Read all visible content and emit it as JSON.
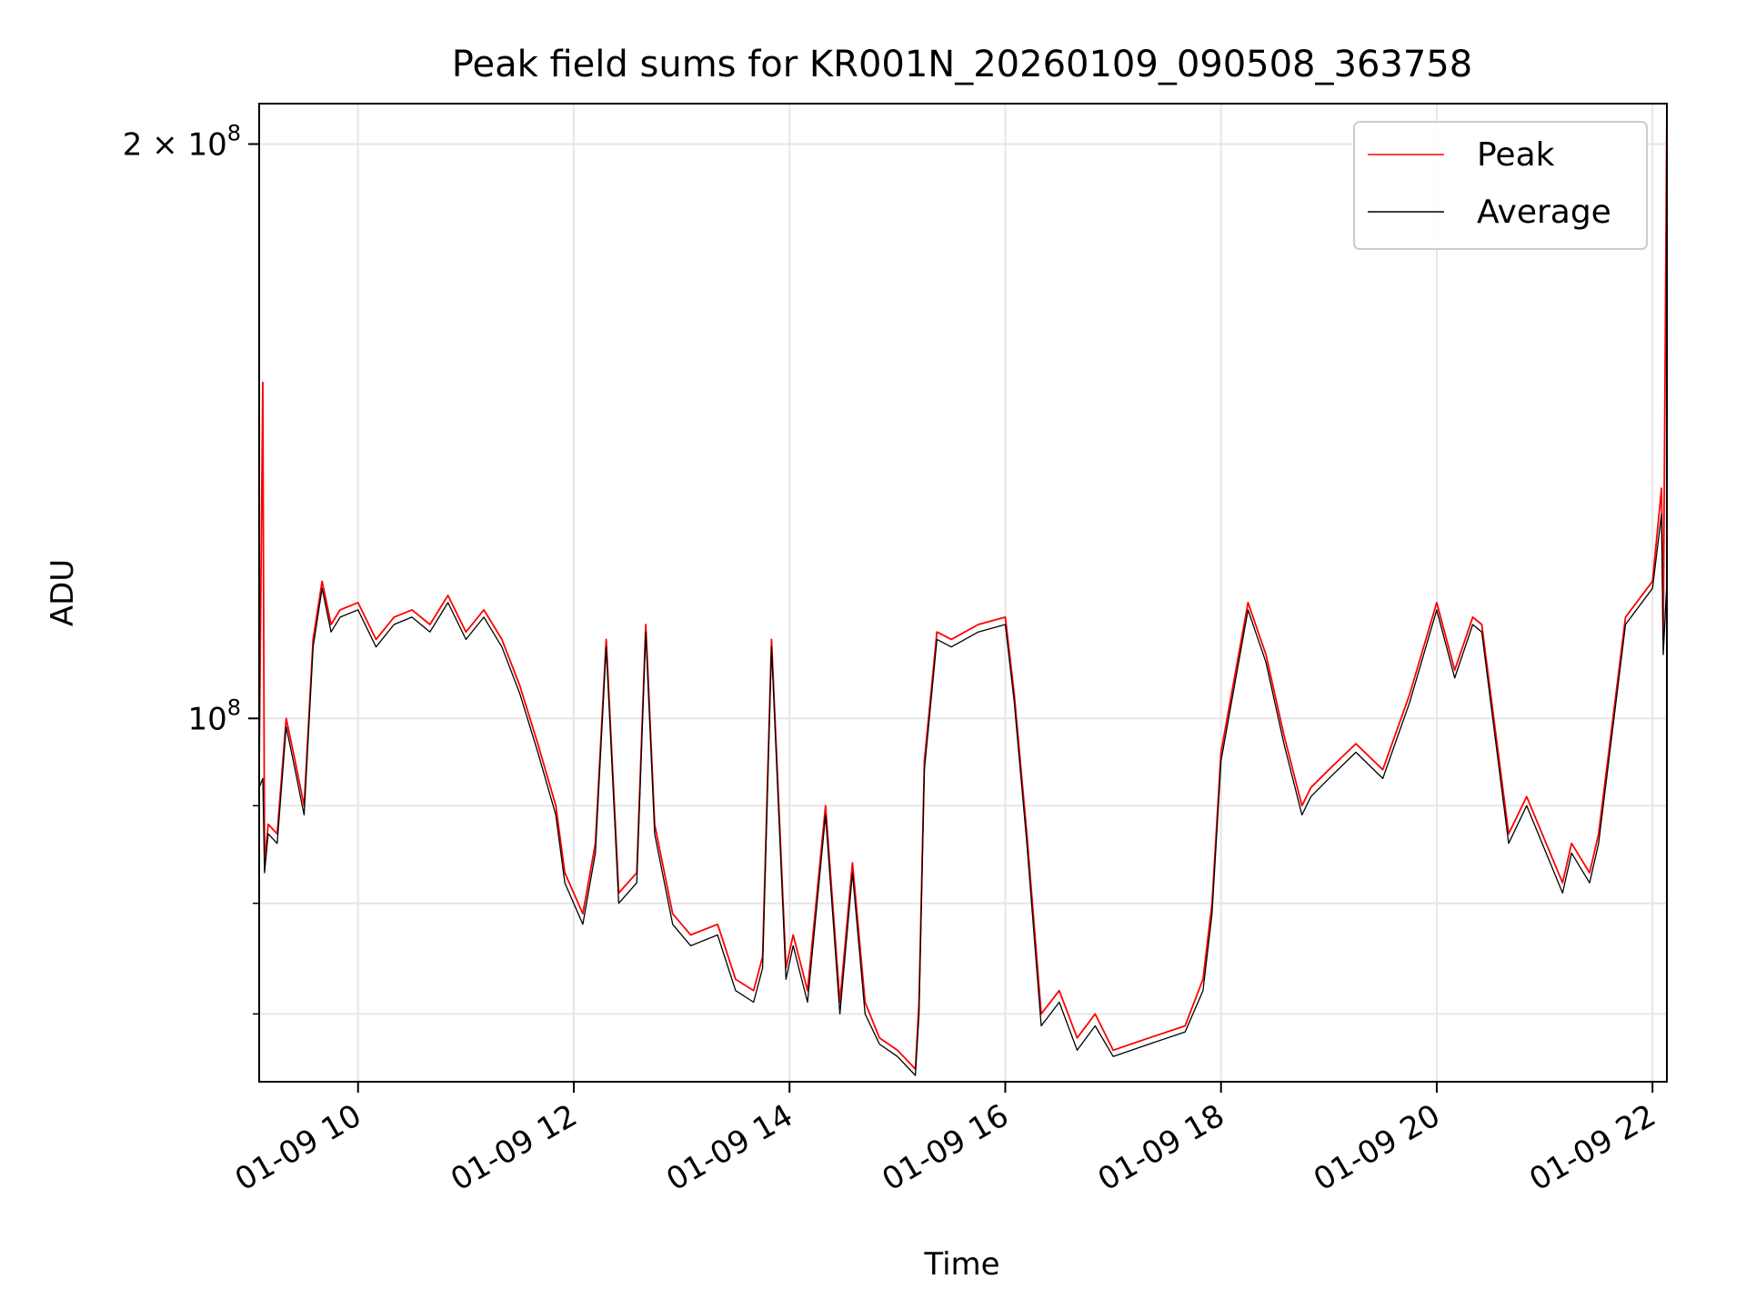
{
  "chart_data": {
    "type": "line",
    "title": "Peak field sums for KR001N_20260109_090508_363758",
    "xlabel": "Time",
    "ylabel": "ADU",
    "y_scale": "log",
    "ylim": [
      64500000,
      210000000
    ],
    "xlim": [
      "2026-01-09 09:05",
      "2026-01-09 22:08"
    ],
    "grid": true,
    "legend_position": "upper right",
    "x_ticks": [
      {
        "value": "2026-01-09 10:00",
        "label": "01-09 10"
      },
      {
        "value": "2026-01-09 12:00",
        "label": "01-09 12"
      },
      {
        "value": "2026-01-09 14:00",
        "label": "01-09 14"
      },
      {
        "value": "2026-01-09 16:00",
        "label": "01-09 16"
      },
      {
        "value": "2026-01-09 18:00",
        "label": "01-09 18"
      },
      {
        "value": "2026-01-09 20:00",
        "label": "01-09 20"
      },
      {
        "value": "2026-01-09 22:00",
        "label": "01-09 22"
      }
    ],
    "y_ticks_major": [
      {
        "value": 100000000,
        "label_base": "10",
        "label_exp": "8",
        "label_prefix": ""
      },
      {
        "value": 200000000,
        "label_base": "10",
        "label_exp": "8",
        "label_prefix": "2 × "
      }
    ],
    "y_ticks_minor": [
      70000000,
      80000000,
      90000000
    ],
    "series": [
      {
        "name": "Peak",
        "color": "#ff0000",
        "x": [
          "2026-01-09 09:05",
          "2026-01-09 09:07",
          "2026-01-09 09:08",
          "2026-01-09 09:10",
          "2026-01-09 09:15",
          "2026-01-09 09:20",
          "2026-01-09 09:25",
          "2026-01-09 09:30",
          "2026-01-09 09:35",
          "2026-01-09 09:40",
          "2026-01-09 09:45",
          "2026-01-09 09:50",
          "2026-01-09 10:00",
          "2026-01-09 10:10",
          "2026-01-09 10:20",
          "2026-01-09 10:30",
          "2026-01-09 10:40",
          "2026-01-09 10:50",
          "2026-01-09 11:00",
          "2026-01-09 11:10",
          "2026-01-09 11:20",
          "2026-01-09 11:30",
          "2026-01-09 11:40",
          "2026-01-09 11:50",
          "2026-01-09 11:55",
          "2026-01-09 12:05",
          "2026-01-09 12:12",
          "2026-01-09 12:18",
          "2026-01-09 12:25",
          "2026-01-09 12:35",
          "2026-01-09 12:40",
          "2026-01-09 12:45",
          "2026-01-09 12:55",
          "2026-01-09 13:05",
          "2026-01-09 13:20",
          "2026-01-09 13:30",
          "2026-01-09 13:40",
          "2026-01-09 13:45",
          "2026-01-09 13:50",
          "2026-01-09 13:58",
          "2026-01-09 14:02",
          "2026-01-09 14:10",
          "2026-01-09 14:20",
          "2026-01-09 14:28",
          "2026-01-09 14:35",
          "2026-01-09 14:42",
          "2026-01-09 14:50",
          "2026-01-09 15:00",
          "2026-01-09 15:10",
          "2026-01-09 15:12",
          "2026-01-09 15:15",
          "2026-01-09 15:22",
          "2026-01-09 15:30",
          "2026-01-09 15:45",
          "2026-01-09 16:00",
          "2026-01-09 16:05",
          "2026-01-09 16:12",
          "2026-01-09 16:20",
          "2026-01-09 16:30",
          "2026-01-09 16:40",
          "2026-01-09 16:50",
          "2026-01-09 17:00",
          "2026-01-09 17:20",
          "2026-01-09 17:40",
          "2026-01-09 17:50",
          "2026-01-09 17:55",
          "2026-01-09 18:00",
          "2026-01-09 18:15",
          "2026-01-09 18:25",
          "2026-01-09 18:35",
          "2026-01-09 18:45",
          "2026-01-09 18:50",
          "2026-01-09 19:00",
          "2026-01-09 19:15",
          "2026-01-09 19:30",
          "2026-01-09 19:45",
          "2026-01-09 20:00",
          "2026-01-09 20:10",
          "2026-01-09 20:20",
          "2026-01-09 20:25",
          "2026-01-09 20:40",
          "2026-01-09 20:50",
          "2026-01-09 21:10",
          "2026-01-09 21:15",
          "2026-01-09 21:25",
          "2026-01-09 21:30",
          "2026-01-09 21:45",
          "2026-01-09 22:00",
          "2026-01-09 22:05",
          "2026-01-09 22:06",
          "2026-01-09 22:08"
        ],
        "y": [
          94000000,
          150000000,
          84000000,
          88000000,
          87000000,
          100000000,
          95000000,
          90000000,
          110000000,
          118000000,
          112000000,
          114000000,
          115000000,
          110000000,
          113000000,
          114000000,
          112000000,
          116000000,
          111000000,
          114000000,
          110000000,
          104000000,
          97000000,
          90000000,
          83000000,
          79000000,
          86000000,
          110000000,
          81000000,
          83000000,
          112000000,
          88000000,
          79000000,
          77000000,
          78000000,
          73000000,
          72000000,
          75000000,
          110000000,
          74000000,
          77000000,
          72000000,
          90000000,
          71000000,
          84000000,
          71000000,
          68000000,
          67000000,
          65500000,
          71000000,
          95000000,
          111000000,
          110000000,
          112000000,
          113000000,
          103000000,
          87000000,
          70000000,
          72000000,
          68000000,
          70000000,
          67000000,
          68000000,
          69000000,
          73000000,
          80000000,
          96000000,
          115000000,
          108000000,
          98000000,
          90000000,
          92000000,
          94000000,
          97000000,
          94000000,
          103000000,
          115000000,
          106000000,
          113000000,
          112000000,
          87000000,
          91000000,
          82000000,
          86000000,
          83000000,
          87000000,
          113000000,
          118000000,
          132000000,
          110000000,
          210000000
        ]
      },
      {
        "name": "Average",
        "color": "#000000",
        "x": [
          "2026-01-09 09:05",
          "2026-01-09 09:07",
          "2026-01-09 09:08",
          "2026-01-09 09:10",
          "2026-01-09 09:15",
          "2026-01-09 09:20",
          "2026-01-09 09:25",
          "2026-01-09 09:30",
          "2026-01-09 09:35",
          "2026-01-09 09:40",
          "2026-01-09 09:45",
          "2026-01-09 09:50",
          "2026-01-09 10:00",
          "2026-01-09 10:10",
          "2026-01-09 10:20",
          "2026-01-09 10:30",
          "2026-01-09 10:40",
          "2026-01-09 10:50",
          "2026-01-09 11:00",
          "2026-01-09 11:10",
          "2026-01-09 11:20",
          "2026-01-09 11:30",
          "2026-01-09 11:40",
          "2026-01-09 11:50",
          "2026-01-09 11:55",
          "2026-01-09 12:05",
          "2026-01-09 12:12",
          "2026-01-09 12:18",
          "2026-01-09 12:25",
          "2026-01-09 12:35",
          "2026-01-09 12:40",
          "2026-01-09 12:45",
          "2026-01-09 12:55",
          "2026-01-09 13:05",
          "2026-01-09 13:20",
          "2026-01-09 13:30",
          "2026-01-09 13:40",
          "2026-01-09 13:45",
          "2026-01-09 13:50",
          "2026-01-09 13:58",
          "2026-01-09 14:02",
          "2026-01-09 14:10",
          "2026-01-09 14:20",
          "2026-01-09 14:28",
          "2026-01-09 14:35",
          "2026-01-09 14:42",
          "2026-01-09 14:50",
          "2026-01-09 15:00",
          "2026-01-09 15:10",
          "2026-01-09 15:12",
          "2026-01-09 15:15",
          "2026-01-09 15:22",
          "2026-01-09 15:30",
          "2026-01-09 15:45",
          "2026-01-09 16:00",
          "2026-01-09 16:05",
          "2026-01-09 16:12",
          "2026-01-09 16:20",
          "2026-01-09 16:30",
          "2026-01-09 16:40",
          "2026-01-09 16:50",
          "2026-01-09 17:00",
          "2026-01-09 17:20",
          "2026-01-09 17:40",
          "2026-01-09 17:50",
          "2026-01-09 17:55",
          "2026-01-09 18:00",
          "2026-01-09 18:15",
          "2026-01-09 18:25",
          "2026-01-09 18:35",
          "2026-01-09 18:45",
          "2026-01-09 18:50",
          "2026-01-09 19:00",
          "2026-01-09 19:15",
          "2026-01-09 19:30",
          "2026-01-09 19:45",
          "2026-01-09 20:00",
          "2026-01-09 20:10",
          "2026-01-09 20:20",
          "2026-01-09 20:25",
          "2026-01-09 20:40",
          "2026-01-09 20:50",
          "2026-01-09 21:10",
          "2026-01-09 21:15",
          "2026-01-09 21:25",
          "2026-01-09 21:30",
          "2026-01-09 21:45",
          "2026-01-09 22:00",
          "2026-01-09 22:05",
          "2026-01-09 22:06",
          "2026-01-09 22:08"
        ],
        "y": [
          92000000,
          93000000,
          83000000,
          87000000,
          86000000,
          99000000,
          94000000,
          89000000,
          109000000,
          117000000,
          111000000,
          113000000,
          114000000,
          109000000,
          112000000,
          113000000,
          111000000,
          115000000,
          110000000,
          113000000,
          109000000,
          103000000,
          96000000,
          89000000,
          82000000,
          78000000,
          85000000,
          109000000,
          80000000,
          82000000,
          111000000,
          87000000,
          78000000,
          76000000,
          77000000,
          72000000,
          71000000,
          74000000,
          109000000,
          73000000,
          76000000,
          71000000,
          89000000,
          70000000,
          83000000,
          70000000,
          67500000,
          66500000,
          65000000,
          70000000,
          94000000,
          110000000,
          109000000,
          111000000,
          112000000,
          102000000,
          86000000,
          69000000,
          71000000,
          67000000,
          69000000,
          66500000,
          67500000,
          68500000,
          72000000,
          79000000,
          95000000,
          114000000,
          107000000,
          97000000,
          89000000,
          91000000,
          93000000,
          96000000,
          93000000,
          102000000,
          114000000,
          105000000,
          112000000,
          111000000,
          86000000,
          90000000,
          81000000,
          85000000,
          82000000,
          86000000,
          112000000,
          117000000,
          128000000,
          108000000,
          118000000
        ]
      }
    ]
  }
}
